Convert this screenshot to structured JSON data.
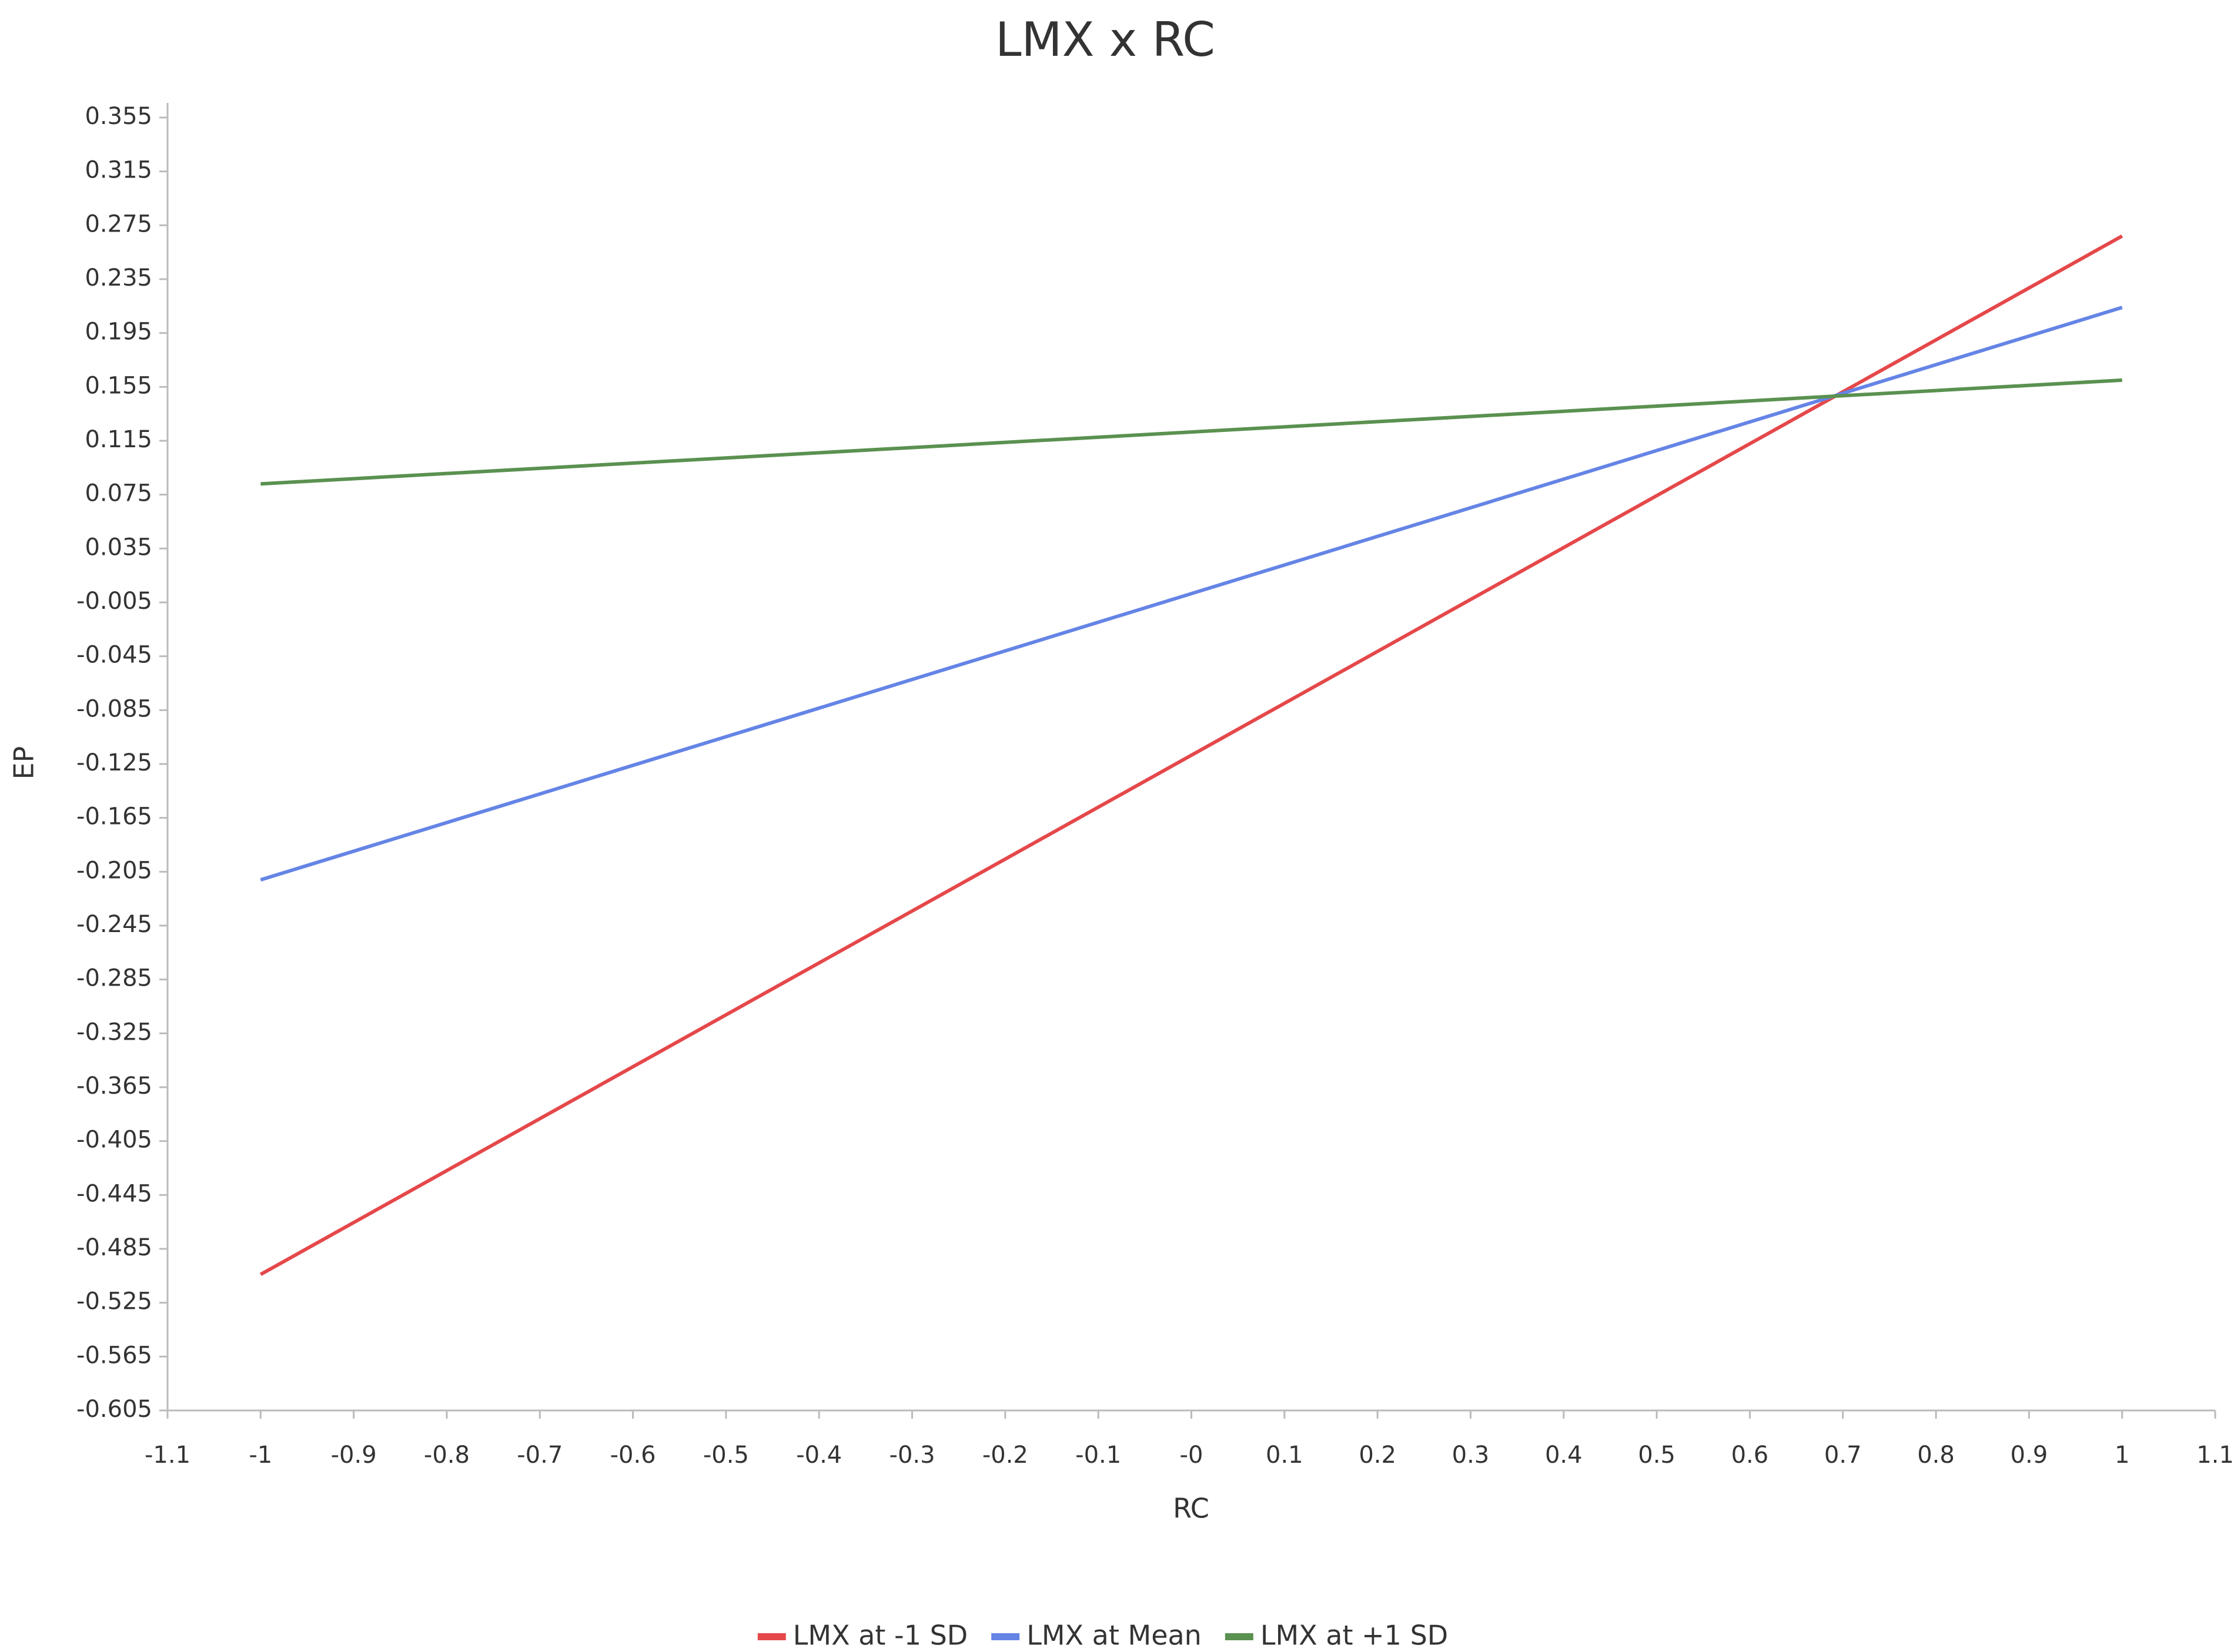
{
  "chart_data": {
    "type": "line",
    "title": "LMX x RC",
    "x_label": "RC",
    "y_label": "EP",
    "x": [
      -1,
      1
    ],
    "series": [
      {
        "name": "LMX at -1 SD",
        "color": "#e5484a",
        "values": [
          -0.504,
          0.267
        ]
      },
      {
        "name": "LMX at Mean",
        "color": "#6584e6",
        "values": [
          -0.211,
          0.214
        ]
      },
      {
        "name": "LMX at +1 SD",
        "color": "#5a9150",
        "values": [
          0.083,
          0.16
        ]
      }
    ],
    "xlim": [
      -1.1,
      1.1
    ],
    "xticks": [
      -1.1,
      -1,
      -0.9,
      -0.8,
      -0.7,
      -0.6,
      -0.5,
      -0.4,
      -0.3,
      -0.2,
      -0.1,
      {
        "value": 0,
        "label": "-0"
      },
      0.1,
      0.2,
      0.3,
      0.4,
      0.5,
      0.6,
      0.7,
      0.8,
      0.9,
      1,
      1.1
    ],
    "ylim": [
      -0.605,
      0.355
    ],
    "yticks": [
      0.355,
      0.315,
      0.275,
      0.235,
      0.195,
      0.155,
      0.115,
      0.075,
      0.035,
      -0.005,
      -0.045,
      -0.085,
      -0.125,
      -0.165,
      -0.205,
      -0.245,
      -0.285,
      -0.325,
      -0.365,
      -0.405,
      -0.445,
      -0.485,
      -0.525,
      -0.565,
      -0.605
    ],
    "legend": "bottom"
  }
}
